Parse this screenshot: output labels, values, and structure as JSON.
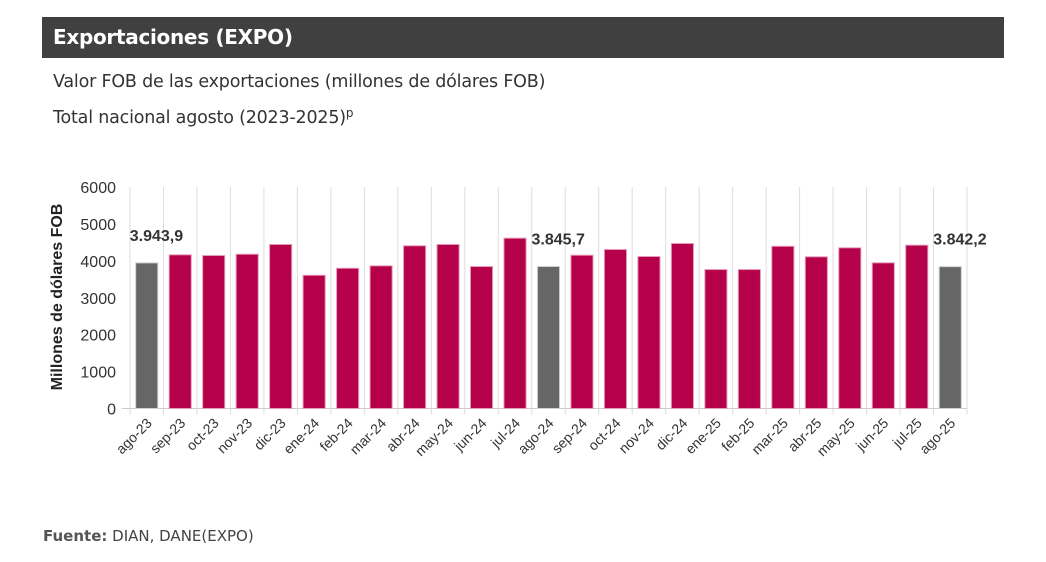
{
  "header": {
    "title": "Exportaciones (EXPO)"
  },
  "subtitle_line1": "Valor FOB de las exportaciones (millones de dólares FOB)",
  "subtitle_line2": "Total nacional agosto (2023-2025)",
  "subtitle_superscript": "p",
  "source": {
    "label": "Fuente:",
    "text": "DIAN, DANE(EXPO)"
  },
  "colors": {
    "header_bg": "#404040",
    "bar_highlight": "#666666",
    "bar_default": "#B5004A",
    "grid": "#dddddd"
  },
  "chart_data": {
    "type": "bar",
    "title": "Valor FOB de las exportaciones (millones de dólares FOB)",
    "xlabel": "",
    "ylabel": "Millones de dólares FOB",
    "ylim": [
      0,
      6000
    ],
    "yticks": [
      0,
      1000,
      2000,
      3000,
      4000,
      5000,
      6000
    ],
    "grid": true,
    "categories": [
      "ago-23",
      "sep-23",
      "oct-23",
      "nov-23",
      "dic-23",
      "ene-24",
      "feb-24",
      "mar-24",
      "abr-24",
      "may-24",
      "jun-24",
      "jul-24",
      "ago-24",
      "sep-24",
      "oct-24",
      "nov-24",
      "dic-24",
      "ene-25",
      "feb-25",
      "mar-25",
      "abr-25",
      "may-25",
      "jun-25",
      "jul-25",
      "ago-25"
    ],
    "values": [
      3943.9,
      4163,
      4144,
      4179,
      4443,
      3609,
      3799,
      3864,
      4408,
      4443,
      3845,
      4614,
      3845.7,
      4152,
      4307,
      4117,
      4470,
      3764,
      3764,
      4394,
      4109,
      4353,
      3946,
      4424,
      3842.2
    ],
    "highlighted": [
      "ago-23",
      "ago-24",
      "ago-25"
    ],
    "data_labels": [
      {
        "category": "ago-23",
        "text": "3.943,9"
      },
      {
        "category": "ago-24",
        "text": "3.845,7"
      },
      {
        "category": "ago-25",
        "text": "3.842,2"
      }
    ]
  }
}
